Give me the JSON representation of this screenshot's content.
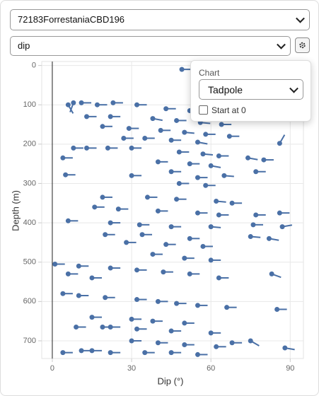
{
  "header": {
    "dataset": "72183ForrestaniaCBD196",
    "field": "dip"
  },
  "popup": {
    "label": "Chart",
    "chart_type": "Tadpole",
    "checkbox_label": "Start at 0"
  },
  "chart_data": {
    "type": "tadpole",
    "x_label": "Dip (°)",
    "y_label": "Depth (m)",
    "color": "#4a70a6",
    "xlim": [
      -4,
      95
    ],
    "ylim": [
      -10,
      745
    ],
    "xticks": [
      0,
      30,
      60,
      90
    ],
    "yticks": [
      0,
      100,
      200,
      300,
      400,
      500,
      600,
      700
    ],
    "grid": true,
    "y_inverted": true,
    "x": [
      49,
      8,
      11,
      23,
      6,
      17,
      32,
      43,
      52,
      60,
      13,
      22,
      38,
      47,
      56,
      64,
      19,
      29,
      41,
      50,
      58,
      67,
      27,
      35,
      45,
      55,
      86,
      4,
      8,
      13,
      21,
      30,
      48,
      57,
      63,
      74,
      80,
      40,
      52,
      60,
      5,
      30,
      45,
      55,
      65,
      77,
      48,
      58,
      19,
      36,
      47,
      62,
      68,
      16,
      25,
      40,
      55,
      63,
      77,
      86,
      6,
      22,
      33,
      45,
      60,
      76,
      87,
      20,
      34,
      52,
      75,
      82,
      28,
      43,
      57,
      38,
      50,
      60,
      1,
      10,
      22,
      32,
      42,
      52,
      83,
      6,
      15,
      63,
      4,
      10,
      20,
      32,
      40,
      47,
      55,
      66,
      85,
      15,
      30,
      38,
      50,
      22,
      32,
      45,
      60,
      75,
      9,
      19,
      30,
      40,
      50,
      62,
      68,
      4,
      11,
      15,
      22,
      35,
      45,
      55,
      88
    ],
    "y": [
      10,
      95,
      95,
      95,
      100,
      100,
      100,
      110,
      115,
      125,
      130,
      130,
      135,
      140,
      145,
      150,
      155,
      160,
      165,
      170,
      175,
      180,
      185,
      185,
      190,
      195,
      198,
      235,
      210,
      210,
      210,
      210,
      220,
      225,
      230,
      235,
      240,
      245,
      250,
      255,
      278,
      280,
      270,
      285,
      280,
      270,
      300,
      305,
      335,
      335,
      340,
      345,
      350,
      360,
      365,
      370,
      375,
      380,
      380,
      375,
      395,
      400,
      405,
      410,
      410,
      405,
      410,
      430,
      430,
      440,
      435,
      440,
      450,
      455,
      460,
      480,
      490,
      495,
      505,
      510,
      515,
      520,
      525,
      530,
      530,
      530,
      540,
      540,
      580,
      585,
      590,
      595,
      600,
      605,
      610,
      615,
      620,
      640,
      645,
      650,
      655,
      665,
      670,
      675,
      680,
      700,
      665,
      665,
      700,
      705,
      710,
      715,
      705,
      730,
      725,
      725,
      730,
      730,
      730,
      735,
      718
    ],
    "azimuth": [
      90,
      200,
      90,
      90,
      150,
      90,
      90,
      90,
      90,
      80,
      90,
      90,
      100,
      90,
      95,
      90,
      90,
      90,
      90,
      95,
      90,
      90,
      90,
      90,
      90,
      100,
      30,
      90,
      90,
      90,
      90,
      90,
      90,
      95,
      90,
      100,
      90,
      90,
      90,
      100,
      90,
      90,
      90,
      90,
      95,
      90,
      90,
      90,
      90,
      90,
      90,
      95,
      90,
      90,
      90,
      90,
      90,
      90,
      90,
      90,
      90,
      90,
      90,
      90,
      95,
      90,
      80,
      90,
      90,
      90,
      95,
      100,
      90,
      90,
      90,
      90,
      90,
      90,
      90,
      90,
      90,
      90,
      90,
      90,
      110,
      90,
      90,
      90,
      90,
      90,
      90,
      90,
      90,
      90,
      90,
      90,
      90,
      90,
      90,
      90,
      90,
      90,
      90,
      90,
      90,
      120,
      90,
      90,
      90,
      90,
      90,
      90,
      90,
      90,
      90,
      90,
      90,
      90,
      90,
      90,
      100
    ]
  }
}
